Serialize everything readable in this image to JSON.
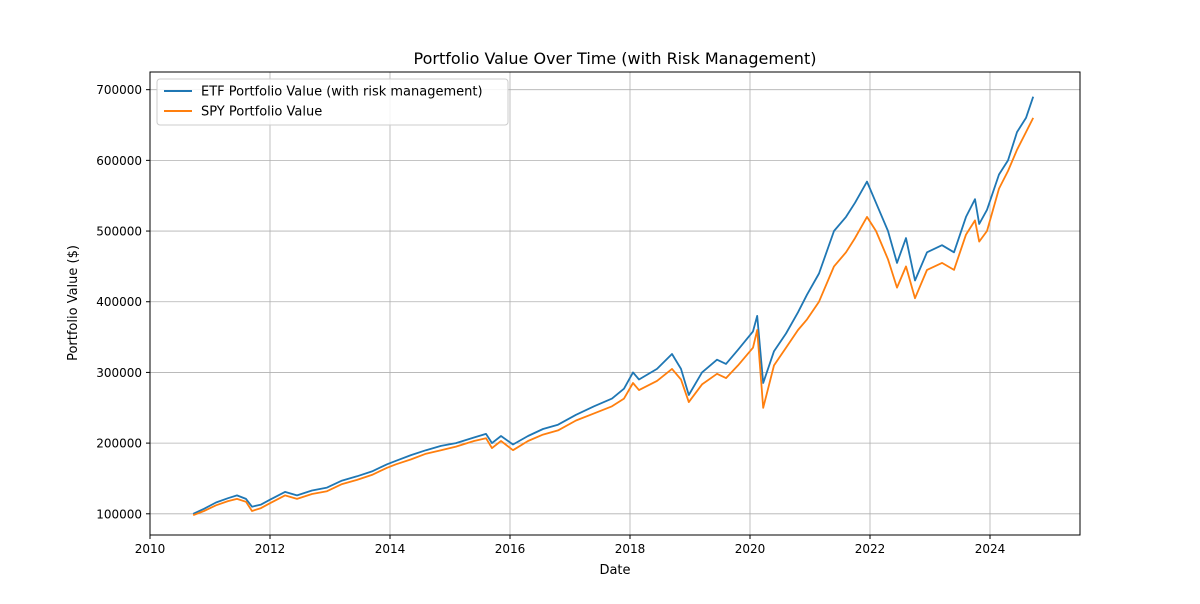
{
  "chart_data": {
    "type": "line",
    "title": "Portfolio Value Over Time (with Risk Management)",
    "xlabel": "Date",
    "ylabel": "Portfolio Value ($)",
    "xlim": [
      2010.0,
      2025.5
    ],
    "ylim": [
      70000,
      725000
    ],
    "x_ticks": [
      2010,
      2012,
      2014,
      2016,
      2018,
      2020,
      2022,
      2024
    ],
    "x_tick_labels": [
      "2010",
      "2012",
      "2014",
      "2016",
      "2018",
      "2020",
      "2022",
      "2024"
    ],
    "y_ticks": [
      100000,
      200000,
      300000,
      400000,
      500000,
      600000,
      700000
    ],
    "y_tick_labels": [
      "100000",
      "200000",
      "300000",
      "400000",
      "500000",
      "600000",
      "700000"
    ],
    "grid": true,
    "legend_position": "top-left",
    "series": [
      {
        "name": "ETF Portfolio Value (with risk management)",
        "color": "#1f77b4",
        "points": [
          [
            2010.72,
            100000
          ],
          [
            2010.9,
            107000
          ],
          [
            2011.1,
            116000
          ],
          [
            2011.3,
            122000
          ],
          [
            2011.45,
            126000
          ],
          [
            2011.6,
            121000
          ],
          [
            2011.7,
            110000
          ],
          [
            2011.85,
            113000
          ],
          [
            2012.0,
            120000
          ],
          [
            2012.25,
            131000
          ],
          [
            2012.45,
            126000
          ],
          [
            2012.7,
            133000
          ],
          [
            2012.95,
            137000
          ],
          [
            2013.2,
            147000
          ],
          [
            2013.45,
            153000
          ],
          [
            2013.7,
            160000
          ],
          [
            2013.95,
            170000
          ],
          [
            2014.1,
            175000
          ],
          [
            2014.35,
            183000
          ],
          [
            2014.6,
            190000
          ],
          [
            2014.85,
            196000
          ],
          [
            2015.1,
            200000
          ],
          [
            2015.4,
            208000
          ],
          [
            2015.6,
            213000
          ],
          [
            2015.7,
            200000
          ],
          [
            2015.85,
            210000
          ],
          [
            2016.05,
            198000
          ],
          [
            2016.3,
            210000
          ],
          [
            2016.55,
            220000
          ],
          [
            2016.8,
            226000
          ],
          [
            2017.1,
            240000
          ],
          [
            2017.4,
            252000
          ],
          [
            2017.7,
            263000
          ],
          [
            2017.9,
            277000
          ],
          [
            2018.05,
            300000
          ],
          [
            2018.15,
            290000
          ],
          [
            2018.45,
            305000
          ],
          [
            2018.7,
            326000
          ],
          [
            2018.85,
            305000
          ],
          [
            2018.98,
            268000
          ],
          [
            2019.2,
            300000
          ],
          [
            2019.45,
            318000
          ],
          [
            2019.6,
            312000
          ],
          [
            2019.8,
            332000
          ],
          [
            2020.05,
            358000
          ],
          [
            2020.12,
            380000
          ],
          [
            2020.22,
            285000
          ],
          [
            2020.4,
            330000
          ],
          [
            2020.6,
            355000
          ],
          [
            2020.8,
            385000
          ],
          [
            2020.95,
            410000
          ],
          [
            2021.15,
            440000
          ],
          [
            2021.4,
            500000
          ],
          [
            2021.6,
            520000
          ],
          [
            2021.75,
            540000
          ],
          [
            2021.95,
            570000
          ],
          [
            2022.1,
            540000
          ],
          [
            2022.3,
            500000
          ],
          [
            2022.45,
            455000
          ],
          [
            2022.6,
            490000
          ],
          [
            2022.75,
            430000
          ],
          [
            2022.95,
            470000
          ],
          [
            2023.2,
            480000
          ],
          [
            2023.4,
            470000
          ],
          [
            2023.6,
            520000
          ],
          [
            2023.75,
            545000
          ],
          [
            2023.82,
            510000
          ],
          [
            2023.95,
            530000
          ],
          [
            2024.15,
            580000
          ],
          [
            2024.3,
            600000
          ],
          [
            2024.45,
            640000
          ],
          [
            2024.6,
            660000
          ],
          [
            2024.72,
            690000
          ]
        ]
      },
      {
        "name": "SPY Portfolio Value",
        "color": "#ff7f0e",
        "points": [
          [
            2010.72,
            98000
          ],
          [
            2010.9,
            104000
          ],
          [
            2011.1,
            112000
          ],
          [
            2011.3,
            118000
          ],
          [
            2011.45,
            121000
          ],
          [
            2011.6,
            117000
          ],
          [
            2011.7,
            104000
          ],
          [
            2011.85,
            108000
          ],
          [
            2012.0,
            115000
          ],
          [
            2012.25,
            126000
          ],
          [
            2012.45,
            121000
          ],
          [
            2012.7,
            128000
          ],
          [
            2012.95,
            132000
          ],
          [
            2013.2,
            142000
          ],
          [
            2013.45,
            148000
          ],
          [
            2013.7,
            155000
          ],
          [
            2013.95,
            165000
          ],
          [
            2014.1,
            170000
          ],
          [
            2014.35,
            177000
          ],
          [
            2014.6,
            185000
          ],
          [
            2014.85,
            190000
          ],
          [
            2015.1,
            195000
          ],
          [
            2015.4,
            203000
          ],
          [
            2015.6,
            207000
          ],
          [
            2015.7,
            193000
          ],
          [
            2015.85,
            203000
          ],
          [
            2016.05,
            190000
          ],
          [
            2016.3,
            203000
          ],
          [
            2016.55,
            212000
          ],
          [
            2016.8,
            218000
          ],
          [
            2017.1,
            232000
          ],
          [
            2017.4,
            242000
          ],
          [
            2017.7,
            252000
          ],
          [
            2017.9,
            263000
          ],
          [
            2018.05,
            285000
          ],
          [
            2018.15,
            275000
          ],
          [
            2018.45,
            288000
          ],
          [
            2018.7,
            305000
          ],
          [
            2018.85,
            290000
          ],
          [
            2018.98,
            258000
          ],
          [
            2019.2,
            283000
          ],
          [
            2019.45,
            298000
          ],
          [
            2019.6,
            292000
          ],
          [
            2019.8,
            310000
          ],
          [
            2020.05,
            335000
          ],
          [
            2020.12,
            360000
          ],
          [
            2020.22,
            250000
          ],
          [
            2020.4,
            310000
          ],
          [
            2020.6,
            335000
          ],
          [
            2020.8,
            360000
          ],
          [
            2020.95,
            375000
          ],
          [
            2021.15,
            400000
          ],
          [
            2021.4,
            450000
          ],
          [
            2021.6,
            470000
          ],
          [
            2021.75,
            490000
          ],
          [
            2021.95,
            520000
          ],
          [
            2022.1,
            500000
          ],
          [
            2022.3,
            460000
          ],
          [
            2022.45,
            420000
          ],
          [
            2022.6,
            450000
          ],
          [
            2022.75,
            405000
          ],
          [
            2022.95,
            445000
          ],
          [
            2023.2,
            455000
          ],
          [
            2023.4,
            445000
          ],
          [
            2023.6,
            495000
          ],
          [
            2023.75,
            515000
          ],
          [
            2023.82,
            485000
          ],
          [
            2023.95,
            500000
          ],
          [
            2024.15,
            560000
          ],
          [
            2024.3,
            585000
          ],
          [
            2024.45,
            615000
          ],
          [
            2024.6,
            640000
          ],
          [
            2024.72,
            660000
          ]
        ]
      }
    ]
  }
}
